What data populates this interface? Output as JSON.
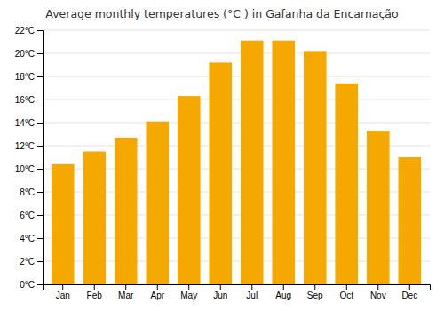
{
  "chart_data": {
    "type": "bar",
    "title": "Average monthly temperatures (°C ) in Gafanha da Encarnação",
    "categories": [
      "Jan",
      "Feb",
      "Mar",
      "Apr",
      "May",
      "Jun",
      "Jul",
      "Aug",
      "Sep",
      "Oct",
      "Nov",
      "Dec"
    ],
    "values": [
      10.4,
      11.5,
      12.7,
      14.1,
      16.3,
      19.2,
      21.1,
      21.1,
      20.2,
      17.4,
      13.3,
      11.0
    ],
    "color": "#F5A800",
    "ylim": [
      0,
      22
    ],
    "yticks": [
      {
        "value": 0,
        "label": "0°C"
      },
      {
        "value": 2,
        "label": "2°C"
      },
      {
        "value": 4,
        "label": "4°C"
      },
      {
        "value": 6,
        "label": "6°C"
      },
      {
        "value": 8,
        "label": "8°C"
      },
      {
        "value": 10,
        "label": "10°C"
      },
      {
        "value": 12,
        "label": "12°C"
      },
      {
        "value": 14,
        "label": "14°C"
      },
      {
        "value": 16,
        "label": "16°C"
      },
      {
        "value": 18,
        "label": "18°C"
      },
      {
        "value": 20,
        "label": "20°C"
      },
      {
        "value": 22,
        "label": "22°C"
      }
    ],
    "grid": true
  }
}
